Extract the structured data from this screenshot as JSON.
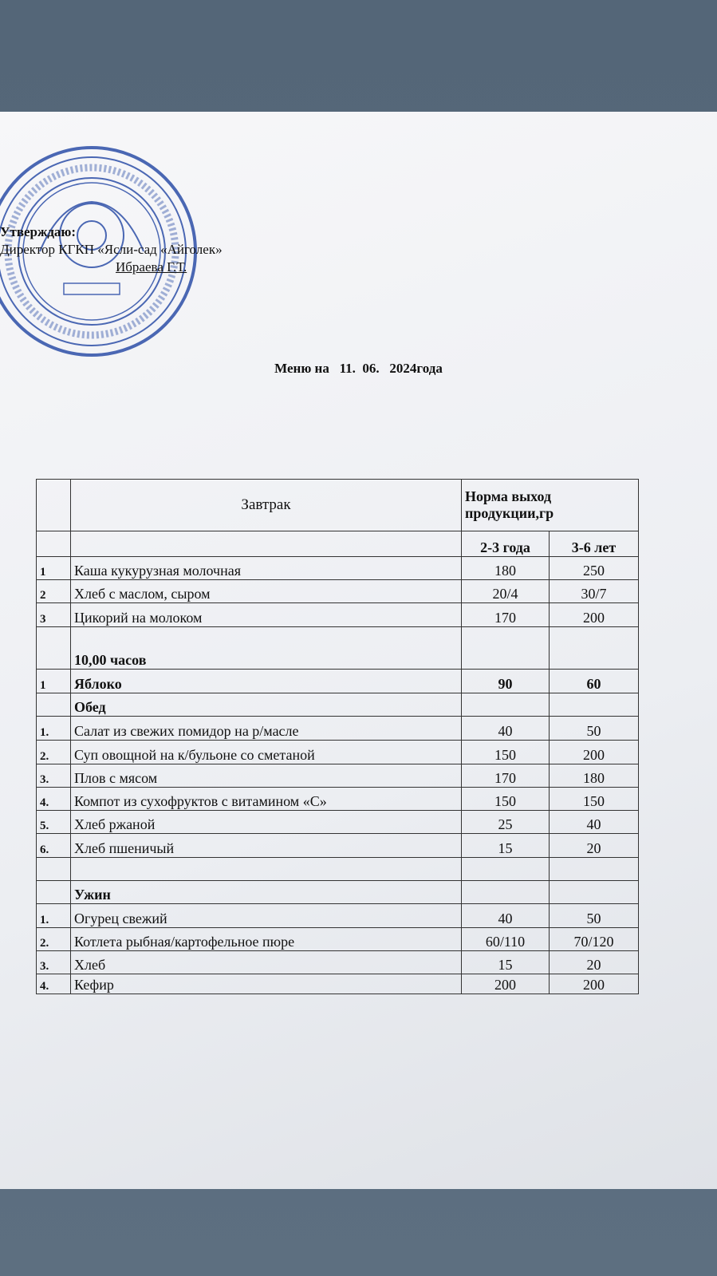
{
  "header": {
    "approve": "Утверждаю:",
    "director": "Директор КГКП «Ясли-сад «Айголек»",
    "signature": "Ибраева Г.Т."
  },
  "title": "Меню на   11.  06.   2024года",
  "table": {
    "head": [
      "Завтрак",
      "Норма выход продукции,гр"
    ],
    "subhead": [
      "2-3 года",
      "3-6 лет"
    ],
    "rows": [
      {
        "cells": [
          "1",
          "Каша  кукурузная  молочная",
          "180",
          "250"
        ]
      },
      {
        "cells": [
          "2",
          "Хлеб с маслом, сыром",
          "20/4",
          "30/7"
        ]
      },
      {
        "cells": [
          "3",
          "Цикорий на   молоком",
          "170",
          "200"
        ]
      },
      {
        "cells": [
          null,
          "10,00 часов",
          null,
          null
        ],
        "bold": true
      },
      {
        "cells": [
          "1",
          "Яблоко",
          "90",
          "60"
        ],
        "bold": true
      },
      {
        "cells": [
          null,
          "Обед",
          null,
          null
        ],
        "bold": true
      },
      {
        "cells": [
          "1.",
          "Салат  из свежих помидор на р/масле",
          "40",
          "50"
        ]
      },
      {
        "cells": [
          "2.",
          "Суп овощной  на к/бульоне со сметаной",
          "150",
          "200"
        ]
      },
      {
        "cells": [
          "3.",
          "Плов с мясом",
          "170",
          "180"
        ]
      },
      {
        "cells": [
          "4.",
          "Компот из сухофруктов с витамином «С»",
          "150",
          "150"
        ]
      },
      {
        "cells": [
          "5.",
          "Хлеб ржаной",
          "25",
          "40"
        ]
      },
      {
        "cells": [
          "6.",
          "Хлеб пшеничый",
          "15",
          "20"
        ]
      },
      {
        "cells": [
          null,
          null,
          null,
          null
        ]
      },
      {
        "cells": [
          null,
          "Ужин",
          null,
          null
        ],
        "bold": true
      },
      {
        "cells": [
          "1.",
          "Огурец свежий",
          "40",
          "50"
        ]
      },
      {
        "cells": [
          "2.",
          "Котлета рыбная/картофельное пюре",
          "60/110",
          "70/120"
        ]
      },
      {
        "cells": [
          "3.",
          "Хлеб",
          "15",
          "20"
        ]
      },
      {
        "cells": [
          "4.",
          "Кефир",
          "200",
          "200"
        ]
      }
    ]
  }
}
